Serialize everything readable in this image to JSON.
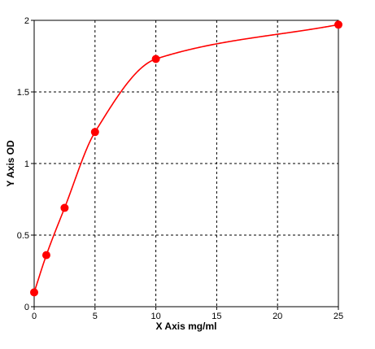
{
  "chart_data": {
    "type": "scatter",
    "title": "",
    "xlabel": "X Axis mg/ml",
    "ylabel": "Y Axis OD",
    "xlim": [
      0,
      25
    ],
    "ylim": [
      0,
      2
    ],
    "x_ticks": [
      0,
      5,
      10,
      15,
      20,
      25
    ],
    "y_ticks": [
      0,
      0.5,
      1,
      1.5,
      2
    ],
    "x_tick_labels": [
      "0",
      "5",
      "10",
      "15",
      "20",
      "25"
    ],
    "y_tick_labels": [
      "0",
      "0.5",
      "1",
      "1.5",
      "2"
    ],
    "grid": true,
    "legend": "none",
    "series": [
      {
        "x": [
          0,
          1,
          2.5,
          5,
          10,
          25
        ],
        "y": [
          0.1,
          0.36,
          0.69,
          1.22,
          1.73,
          1.97
        ],
        "color": "#ff0000",
        "marker": "circle",
        "fit_curve": "4-parameter logistic"
      }
    ]
  }
}
